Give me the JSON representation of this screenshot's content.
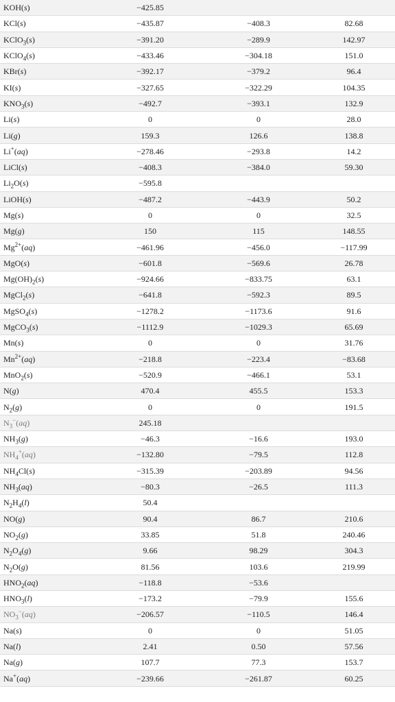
{
  "table": {
    "rows": [
      {
        "formula": "KOH(<i>s</i>)",
        "h": "−425.85",
        "g": "",
        "s": ""
      },
      {
        "formula": "KCl(<i>s</i>)",
        "h": "−435.87",
        "g": "−408.3",
        "s": "82.68"
      },
      {
        "formula": "KClO<sub>3</sub>(<i>s</i>)",
        "h": "−391.20",
        "g": "−289.9",
        "s": "142.97"
      },
      {
        "formula": "KClO<sub>4</sub>(<i>s</i>)",
        "h": "−433.46",
        "g": "−304.18",
        "s": "151.0"
      },
      {
        "formula": "KBr(<i>s</i>)",
        "h": "−392.17",
        "g": "−379.2",
        "s": "96.4"
      },
      {
        "formula": "KI(<i>s</i>)",
        "h": "−327.65",
        "g": "−322.29",
        "s": "104.35"
      },
      {
        "formula": "KNO<sub>3</sub>(<i>s</i>)",
        "h": "−492.7",
        "g": "−393.1",
        "s": "132.9"
      },
      {
        "formula": "Li(<i>s</i>)",
        "h": "0",
        "g": "0",
        "s": "28.0"
      },
      {
        "formula": "Li(<i>g</i>)",
        "h": "159.3",
        "g": "126.6",
        "s": "138.8"
      },
      {
        "formula": "Li<sup>+</sup>(<i>aq</i>)",
        "h": "−278.46",
        "g": "−293.8",
        "s": "14.2"
      },
      {
        "formula": "LiCl(<i>s</i>)",
        "h": "−408.3",
        "g": "−384.0",
        "s": "59.30"
      },
      {
        "formula": "Li<sub>2</sub>O(<i>s</i>)",
        "h": "−595.8",
        "g": "",
        "s": ""
      },
      {
        "formula": "LiOH(<i>s</i>)",
        "h": "−487.2",
        "g": "−443.9",
        "s": "50.2"
      },
      {
        "formula": "Mg(<i>s</i>)",
        "h": "0",
        "g": "0",
        "s": "32.5"
      },
      {
        "formula": "Mg(<i>g</i>)",
        "h": "150",
        "g": "115",
        "s": "148.55"
      },
      {
        "formula": "Mg<sup>2+</sup>(<i>aq</i>)",
        "h": "−461.96",
        "g": "−456.0",
        "s": "−117.99"
      },
      {
        "formula": "MgO(<i>s</i>)",
        "h": "−601.8",
        "g": "−569.6",
        "s": "26.78"
      },
      {
        "formula": "Mg(OH)<sub>2</sub>(<i>s</i>)",
        "h": "−924.66",
        "g": "−833.75",
        "s": "63.1"
      },
      {
        "formula": "MgCl<sub>2</sub>(<i>s</i>)",
        "h": "−641.8",
        "g": "−592.3",
        "s": "89.5"
      },
      {
        "formula": "MgSO<sub>4</sub>(<i>s</i>)",
        "h": "−1278.2",
        "g": "−1173.6",
        "s": "91.6"
      },
      {
        "formula": "MgCO<sub>3</sub>(<i>s</i>)",
        "h": "−1112.9",
        "g": "−1029.3",
        "s": "65.69"
      },
      {
        "formula": "Mn(<i>s</i>)",
        "h": "0",
        "g": "0",
        "s": "31.76"
      },
      {
        "formula": "Mn<sup>2+</sup>(<i>aq</i>)",
        "h": "−218.8",
        "g": "−223.4",
        "s": "−83.68"
      },
      {
        "formula": "MnO<sub>2</sub>(<i>s</i>)",
        "h": "−520.9",
        "g": "−466.1",
        "s": "53.1"
      },
      {
        "formula": "N(<i>g</i>)",
        "h": "470.4",
        "g": "455.5",
        "s": "153.3"
      },
      {
        "formula": "N<sub>2</sub>(<i>g</i>)",
        "h": "0",
        "g": "0",
        "s": "191.5"
      },
      {
        "formula": "<span class=\"grey\">N<sub>3</sub><sup>−</sup>(<i>aq</i>)</span>",
        "h": "245.18",
        "g": "",
        "s": ""
      },
      {
        "formula": "NH<sub>3</sub>(<i>g</i>)",
        "h": "−46.3",
        "g": "−16.6",
        "s": "193.0"
      },
      {
        "formula": "<span class=\"grey\">NH<sub>4</sub><sup>+</sup>(<i>aq</i>)</span>",
        "h": "−132.80",
        "g": "−79.5",
        "s": "112.8"
      },
      {
        "formula": "NH<sub>4</sub>Cl(<i>s</i>)",
        "h": "−315.39",
        "g": "−203.89",
        "s": "94.56"
      },
      {
        "formula": "NH<sub>3</sub>(<i>aq</i>)",
        "h": "−80.3",
        "g": "−26.5",
        "s": "111.3"
      },
      {
        "formula": "N<sub>2</sub>H<sub>4</sub>(<i>l</i>)",
        "h": "50.4",
        "g": "",
        "s": ""
      },
      {
        "formula": "NO(<i>g</i>)",
        "h": "90.4",
        "g": "86.7",
        "s": "210.6"
      },
      {
        "formula": "NO<sub>2</sub>(<i>g</i>)",
        "h": "33.85",
        "g": "51.8",
        "s": "240.46"
      },
      {
        "formula": "N<sub>2</sub>O<sub>4</sub>(<i>g</i>)",
        "h": "9.66",
        "g": "98.29",
        "s": "304.3"
      },
      {
        "formula": "N<sub>2</sub>O(<i>g</i>)",
        "h": "81.56",
        "g": "103.6",
        "s": "219.99"
      },
      {
        "formula": "HNO<sub>2</sub>(<i>aq</i>)",
        "h": "−118.8",
        "g": "−53.6",
        "s": ""
      },
      {
        "formula": "HNO<sub>3</sub>(<i>l</i>)",
        "h": "−173.2",
        "g": "−79.9",
        "s": "155.6"
      },
      {
        "formula": "<span class=\"grey\">NO<sub>3</sub><sup>−</sup>(<i>aq</i>)</span>",
        "h": "−206.57",
        "g": "−110.5",
        "s": "146.4"
      },
      {
        "formula": "Na(<i>s</i>)",
        "h": "0",
        "g": "0",
        "s": "51.05"
      },
      {
        "formula": "Na(<i>l</i>)",
        "h": "2.41",
        "g": "0.50",
        "s": "57.56"
      },
      {
        "formula": "Na(<i>g</i>)",
        "h": "107.7",
        "g": "77.3",
        "s": "153.7"
      },
      {
        "formula": "Na<sup>+</sup>(<i>aq</i>)",
        "h": "−239.66",
        "g": "−261.87",
        "s": "60.25"
      }
    ]
  }
}
